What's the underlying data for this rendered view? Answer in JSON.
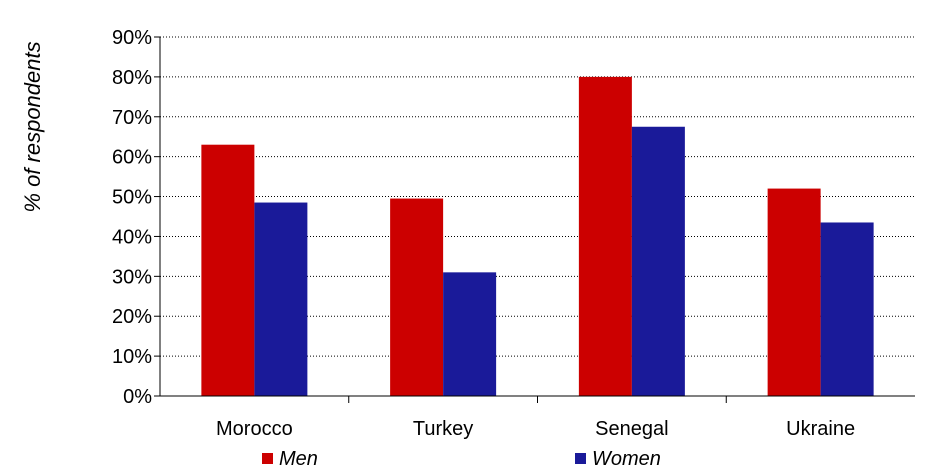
{
  "chart_data": {
    "type": "bar",
    "title": "",
    "xlabel": "",
    "ylabel": "% of respondents",
    "categories": [
      "Morocco",
      "Turkey",
      "Senegal",
      "Ukraine"
    ],
    "series": [
      {
        "name": "Men",
        "color": "#CC0000",
        "values": [
          63,
          49.5,
          80,
          52
        ]
      },
      {
        "name": "Women",
        "color": "#1A1A99",
        "values": [
          48.5,
          31,
          67.5,
          43.5
        ]
      }
    ],
    "ylim": [
      0,
      90
    ],
    "yticks": [
      "0%",
      "10%",
      "20%",
      "30%",
      "40%",
      "50%",
      "60%",
      "70%",
      "80%",
      "90%"
    ],
    "grid": "horizontal dotted",
    "legend_position": "bottom"
  }
}
